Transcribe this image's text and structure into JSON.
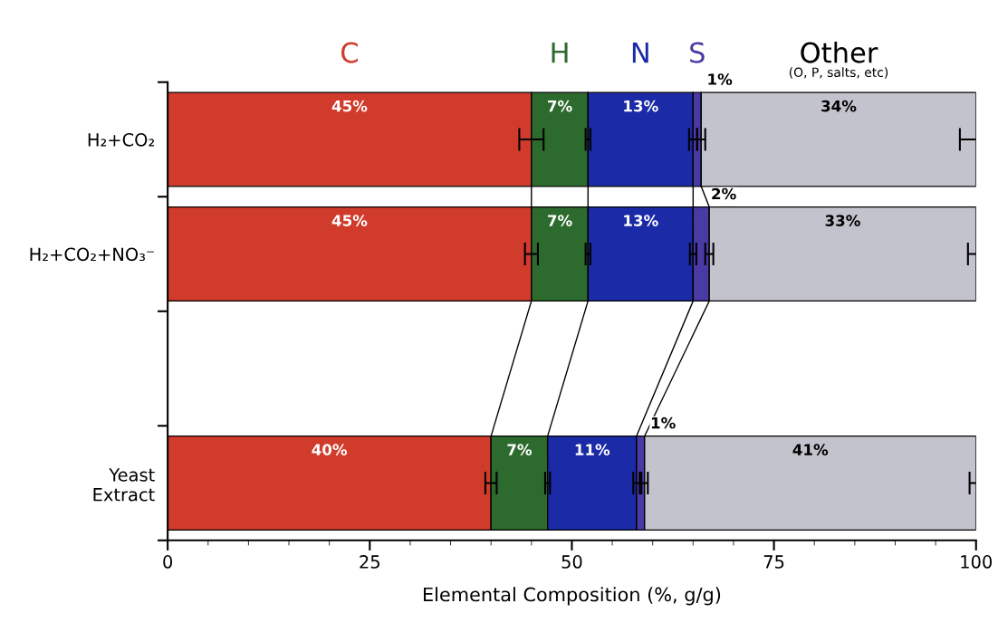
{
  "chart_data": {
    "type": "bar",
    "orientation": "horizontal",
    "stacked": true,
    "legend": "top",
    "categories": [
      "H₂+CO₂",
      "H₂+CO₂+NO₃⁻",
      null,
      "Yeast\nExtract"
    ],
    "series": [
      {
        "name": "C",
        "color": "#d13b2b",
        "values": [
          45,
          45,
          null,
          40
        ],
        "value_labels": [
          "45%",
          "45%",
          null,
          "40%"
        ],
        "errors": [
          1.5,
          0.8,
          null,
          0.7
        ]
      },
      {
        "name": "H",
        "color": "#2d6a2d",
        "values": [
          7,
          7,
          null,
          7
        ],
        "value_labels": [
          "7%",
          "7%",
          null,
          "7%"
        ],
        "errors": [
          0.3,
          0.3,
          null,
          0.3
        ]
      },
      {
        "name": "N",
        "color": "#1b2aa6",
        "values": [
          13,
          13,
          null,
          11
        ],
        "value_labels": [
          "13%",
          "13%",
          null,
          "11%"
        ],
        "errors": [
          0.5,
          0.4,
          null,
          0.4
        ]
      },
      {
        "name": "S",
        "color": "#4a3aa6",
        "values": [
          1,
          2,
          null,
          1
        ],
        "value_labels": [
          "1%",
          "2%",
          null,
          "1%"
        ],
        "errors": [
          0.5,
          0.5,
          null,
          0.4
        ]
      },
      {
        "name": "Other",
        "color": "#c3c3cd",
        "values": [
          34,
          33,
          null,
          41
        ],
        "value_labels": [
          "34%",
          "33%",
          null,
          "41%"
        ],
        "errors": [
          2,
          1,
          null,
          0.8
        ]
      }
    ],
    "annotations": [
      "(O, P, salts, etc)"
    ],
    "xlabel": "Elemental Composition (%, g/g)",
    "xlim": [
      0,
      100
    ],
    "xticks": [
      0,
      25,
      50,
      75,
      100
    ],
    "grid": false
  }
}
